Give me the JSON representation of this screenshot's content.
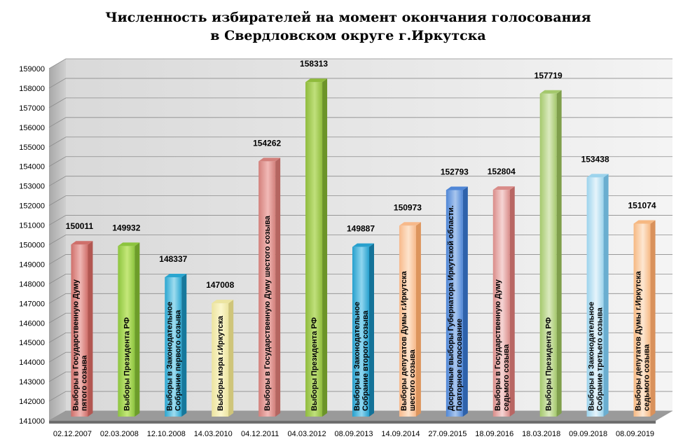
{
  "chart_data": {
    "type": "bar",
    "title": [
      "Численность избирателей на момент  окончания голосования",
      "в Свердловском округе г.Иркутска"
    ],
    "ylim": [
      141000,
      159000
    ],
    "ytick_step": 1000,
    "grid": true,
    "categories": [
      "02.12.2007",
      "02.03.2008",
      "12.10.2008",
      "14.03.2010",
      "04.12.2011",
      "04.03.2012",
      "08.09.2013",
      "14.09.2014",
      "27.09.2015",
      "18.09.2016",
      "18.03.2018",
      "09.09.2018",
      "08.09.2019"
    ],
    "values": [
      150011,
      149932,
      148337,
      147008,
      154262,
      158313,
      149887,
      150973,
      152793,
      152804,
      157719,
      153438,
      151074
    ],
    "bar_labels": [
      [
        "Выборы в Государственную  Думу",
        "пятого созыва"
      ],
      [
        "Выборы Президента РФ"
      ],
      [
        "Выборы в Законодательное",
        "Собрание первого созыва"
      ],
      [
        "Выборы мэра г.Иркутска"
      ],
      [
        "Выборы в Государственную Думу шестого созыва"
      ],
      [
        "Выборы  Президента РФ"
      ],
      [
        "Выборы в Законодательное",
        "Собрание второго созыва"
      ],
      [
        "Выборы депутатов Думы г.Иркутска",
        "шестого созыва"
      ],
      [
        "Досрочные выборы Губернатора  Иркутской области.",
        "Повторное  голосование"
      ],
      [
        "Выборы в Государственную  Думу",
        "седьмого созыва"
      ],
      [
        "Выборы Президента РФ"
      ],
      [
        "Выборы в Законодательное",
        "Собрание третьего созыва"
      ],
      [
        "Выборы депутатов  Думы г.Иркутска",
        "седьмого созыва"
      ]
    ],
    "colors": [
      [
        "#efb6b3",
        "#cf6f6a",
        "#b25752"
      ],
      [
        "#c5e87a",
        "#8cc43e",
        "#6d9d2a"
      ],
      [
        "#9fdcef",
        "#2aa6d0",
        "#16789c"
      ],
      [
        "#fbf6cc",
        "#ece4a0",
        "#cfc57a"
      ],
      [
        "#f1b9b6",
        "#d3807b",
        "#b56560"
      ],
      [
        "#c0e07c",
        "#8fbb3c",
        "#6c9428"
      ],
      [
        "#8fd6ef",
        "#27a0cd",
        "#147298"
      ],
      [
        "#fde3cc",
        "#f7b98a",
        "#dd955d"
      ],
      [
        "#a9c6ee",
        "#4f86d6",
        "#2e62ab"
      ],
      [
        "#f6d5d4",
        "#d98c89",
        "#b86663"
      ],
      [
        "#dbeabf",
        "#a4c86c",
        "#7f9f4c"
      ],
      [
        "#e6f4fb",
        "#9cd3ec",
        "#6aaed0"
      ],
      [
        "#fde7d2",
        "#f6b882",
        "#d9915b"
      ]
    ]
  }
}
